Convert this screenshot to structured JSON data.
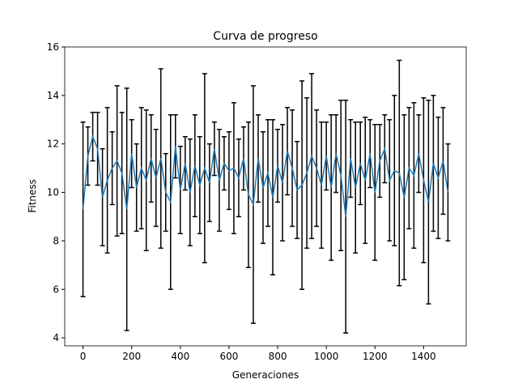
{
  "chart_data": {
    "type": "errorbar-line",
    "title": "Curva de progreso",
    "xlabel": "Generaciones",
    "ylabel": "Fitness",
    "x": [
      0,
      20,
      40,
      60,
      80,
      100,
      120,
      140,
      160,
      180,
      200,
      220,
      240,
      260,
      280,
      300,
      320,
      340,
      360,
      380,
      400,
      420,
      440,
      460,
      480,
      500,
      520,
      540,
      560,
      580,
      600,
      620,
      640,
      660,
      680,
      700,
      720,
      740,
      760,
      780,
      800,
      820,
      840,
      860,
      880,
      900,
      920,
      940,
      960,
      980,
      1000,
      1020,
      1040,
      1060,
      1080,
      1100,
      1120,
      1140,
      1160,
      1180,
      1200,
      1220,
      1240,
      1260,
      1280,
      1300,
      1320,
      1340,
      1360,
      1380,
      1400,
      1420,
      1440,
      1460,
      1480,
      1500
    ],
    "series": [
      {
        "color": "#1f77b4",
        "error_color": "#000000",
        "values": [
          9.3,
          11.5,
          12.3,
          11.8,
          9.8,
          10.5,
          11.0,
          11.3,
          10.8,
          9.3,
          11.6,
          10.2,
          11.0,
          10.5,
          11.4,
          10.6,
          11.4,
          10.0,
          9.6,
          11.9,
          10.1,
          11.2,
          10.0,
          11.1,
          10.3,
          11.0,
          10.4,
          11.8,
          10.5,
          11.2,
          10.9,
          11.0,
          10.6,
          11.4,
          9.9,
          9.5,
          11.4,
          10.2,
          10.8,
          9.8,
          11.1,
          10.4,
          11.7,
          11.0,
          10.1,
          10.3,
          10.8,
          11.5,
          11.0,
          10.3,
          11.5,
          10.2,
          11.6,
          10.7,
          9.0,
          11.4,
          10.2,
          11.2,
          10.5,
          11.6,
          10.0,
          11.3,
          11.8,
          10.5,
          10.9,
          10.8,
          9.8,
          11.0,
          10.7,
          11.6,
          10.5,
          9.6,
          11.2,
          10.6,
          11.3,
          10.0
        ],
        "errors": [
          3.6,
          1.2,
          1.0,
          1.5,
          2.0,
          3.0,
          1.5,
          3.1,
          2.5,
          5.0,
          1.4,
          1.8,
          2.5,
          2.9,
          1.8,
          2.0,
          3.7,
          1.6,
          3.6,
          1.3,
          1.8,
          1.1,
          2.2,
          2.1,
          2.0,
          3.9,
          1.6,
          1.1,
          2.1,
          1.1,
          1.6,
          2.7,
          1.6,
          1.3,
          3.0,
          4.9,
          1.8,
          2.3,
          2.2,
          3.2,
          1.5,
          2.4,
          1.8,
          2.4,
          2.0,
          4.3,
          3.1,
          3.4,
          2.4,
          2.6,
          1.4,
          3.0,
          1.6,
          3.1,
          4.8,
          1.6,
          2.7,
          1.7,
          2.6,
          1.4,
          2.8,
          1.5,
          1.4,
          2.5,
          3.1,
          4.65,
          3.4,
          2.5,
          3.0,
          1.6,
          3.4,
          4.2,
          2.8,
          2.5,
          2.2,
          2.0
        ]
      }
    ],
    "xlim": [
      -75,
      1575
    ],
    "ylim": [
      3.67,
      16
    ],
    "xticks": [
      0,
      200,
      400,
      600,
      800,
      1000,
      1200,
      1400
    ],
    "yticks": [
      4,
      6,
      8,
      10,
      12,
      14,
      16
    ]
  }
}
